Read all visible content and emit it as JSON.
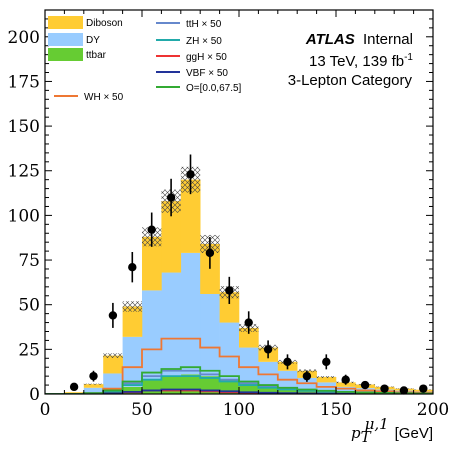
{
  "chart_data": {
    "type": "bar",
    "x_edges": [
      0,
      10,
      20,
      30,
      40,
      50,
      60,
      70,
      80,
      90,
      100,
      110,
      120,
      130,
      140,
      150,
      160,
      170,
      180,
      190,
      200
    ],
    "xlim": [
      0,
      200
    ],
    "ylim": [
      0,
      215
    ],
    "x_ticks": [
      0,
      50,
      100,
      150,
      200
    ],
    "y_ticks": [
      0,
      25,
      50,
      75,
      100,
      125,
      150,
      175,
      200
    ],
    "xlabel": {
      "main": "p",
      "sub": "T",
      "sup": "μ,1",
      "unit": "[GeV]"
    },
    "ylabel": "",
    "stacked_series": [
      {
        "name": "ttbar",
        "color": "#66cc33",
        "values": [
          0,
          0,
          0.5,
          1.5,
          4,
          8,
          10,
          11,
          10,
          8,
          6,
          4,
          3,
          2,
          1.5,
          1,
          0.8,
          0.5,
          0.4,
          0.3
        ]
      },
      {
        "name": "DY",
        "color": "#99ccff",
        "values": [
          0,
          0.5,
          3,
          10,
          28,
          50,
          58,
          68,
          46,
          32,
          20,
          14,
          10,
          7,
          5,
          3,
          2.5,
          2,
          1.5,
          1.2
        ]
      },
      {
        "name": "Diboson",
        "color": "#ffcc33",
        "values": [
          0,
          0.5,
          2,
          10,
          17,
          30,
          40,
          41,
          28,
          17,
          11,
          8,
          5,
          4,
          3,
          2.5,
          2,
          1.5,
          1.1,
          0.9
        ]
      }
    ],
    "uncertainty_band": {
      "fraction": 0.06,
      "hatch": "xxx"
    },
    "line_series": [
      {
        "name": "WH × 50",
        "color": "#ee7733",
        "values": [
          0,
          0,
          0.5,
          3,
          15,
          25,
          31,
          31,
          26,
          21,
          15,
          11,
          8,
          6,
          4,
          3,
          2,
          1.5,
          1,
          0.8
        ]
      },
      {
        "name": "ttH × 50",
        "color": "#6688cc",
        "values": [
          0,
          0,
          0.5,
          2,
          6,
          10,
          13,
          13,
          11,
          8,
          6,
          4,
          3,
          2,
          1.5,
          1,
          0.8,
          0.5,
          0.4,
          0.3
        ]
      },
      {
        "name": "ZH × 50",
        "color": "#22aaaa",
        "values": [
          0,
          0,
          0.3,
          1.5,
          5,
          8,
          10,
          10,
          9,
          7,
          5,
          3.5,
          2.5,
          1.8,
          1.2,
          0.9,
          0.6,
          0.4,
          0.3,
          0.2
        ]
      },
      {
        "name": "ggH × 50",
        "color": "#ee3333",
        "values": [
          0,
          0,
          0.1,
          0.3,
          1,
          2,
          2,
          2,
          1.5,
          1,
          0.6,
          0.4,
          0.3,
          0.2,
          0.1,
          0.1,
          0.1,
          0,
          0,
          0
        ]
      },
      {
        "name": "VBF × 50",
        "color": "#223399",
        "values": [
          0,
          0,
          0.1,
          0.4,
          1.2,
          2,
          2.5,
          2.5,
          2,
          1.5,
          1,
          0.7,
          0.5,
          0.3,
          0.2,
          0.1,
          0.1,
          0,
          0,
          0
        ]
      },
      {
        "name": "O=[0.0,67.5]",
        "color": "#33aa33",
        "values": [
          0,
          0,
          0.5,
          2,
          7,
          12,
          14,
          15,
          13,
          10,
          7,
          5,
          3.5,
          2.5,
          1.8,
          1.2,
          0.8,
          0.6,
          0.4,
          0.3
        ]
      }
    ],
    "data_points": {
      "x": [
        15,
        25,
        35,
        45,
        55,
        65,
        75,
        85,
        95,
        105,
        115,
        125,
        135,
        145,
        155,
        165,
        175,
        185,
        195
      ],
      "y": [
        4,
        10,
        44,
        71,
        92,
        110,
        123,
        79,
        58,
        40,
        25,
        18,
        10,
        18,
        8,
        5,
        3,
        2,
        3
      ],
      "err": [
        2,
        3,
        7,
        8.5,
        9.6,
        10.5,
        11.1,
        8.9,
        7.6,
        6.3,
        5,
        4.2,
        3.2,
        4.2,
        2.8,
        2.2,
        1.7,
        1.4,
        1.7
      ]
    },
    "legend": {
      "position": "top-left",
      "entries": [
        {
          "label": "Diboson",
          "kind": "fill",
          "color": "#ffcc33"
        },
        {
          "label": "DY",
          "kind": "fill",
          "color": "#99ccff"
        },
        {
          "label": "ttbar",
          "kind": "fill",
          "color": "#66cc33"
        },
        {
          "label": "WH × 50",
          "kind": "line",
          "color": "#ee7733"
        },
        {
          "label": "ttH × 50",
          "kind": "line",
          "color": "#6688cc"
        },
        {
          "label": "ZH × 50",
          "kind": "line",
          "color": "#22aaaa"
        },
        {
          "label": "ggH × 50",
          "kind": "line",
          "color": "#ee3333"
        },
        {
          "label": "VBF × 50",
          "kind": "line",
          "color": "#223399"
        },
        {
          "label": "O=[0.0,67.5]",
          "kind": "line",
          "color": "#33aa33"
        }
      ]
    },
    "annotation": {
      "experiment": "ATLAS",
      "status": "Internal",
      "energy_lumi": "13 TeV, 139 fb",
      "lumi_sup": "-1",
      "category": "3-Lepton Category"
    }
  }
}
